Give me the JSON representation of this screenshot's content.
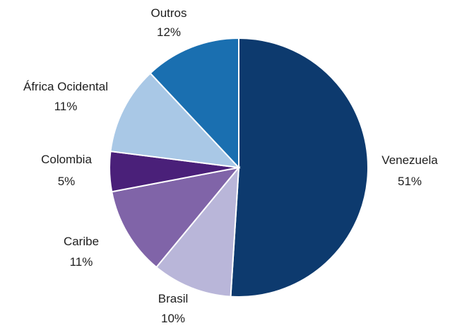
{
  "chart_data": {
    "type": "pie",
    "start_angle_deg": 0,
    "direction": "clockwise",
    "title": "",
    "legend": "none",
    "slices": [
      {
        "label": "Venezuela",
        "pct_label": "51%",
        "value": 51,
        "color": "#0d3a6e"
      },
      {
        "label": "Brasil",
        "pct_label": "10%",
        "value": 10,
        "color": "#b9b6d9"
      },
      {
        "label": "Caribe",
        "pct_label": "11%",
        "value": 11,
        "color": "#8064a8"
      },
      {
        "label": "Colombia",
        "pct_label": "5%",
        "value": 5,
        "color": "#4a2079"
      },
      {
        "label": "África Ocidental",
        "pct_label": "11%",
        "value": 11,
        "color": "#a9c8e6"
      },
      {
        "label": "Outros",
        "pct_label": "12%",
        "value": 12,
        "color": "#1a6fb0"
      }
    ]
  }
}
